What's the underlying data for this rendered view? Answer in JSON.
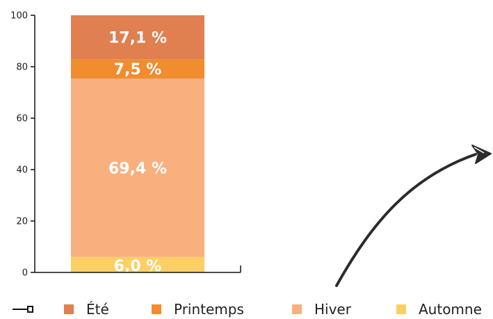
{
  "chart_data": {
    "type": "bar",
    "stacked": true,
    "ylim": [
      0,
      100
    ],
    "yticks": [
      0,
      20,
      40,
      60,
      80,
      100
    ],
    "series": [
      {
        "name": "Automne",
        "value": 6.0,
        "label": "6,0 %",
        "color": "#fccf64"
      },
      {
        "name": "Hiver",
        "value": 69.4,
        "label": "69,4 %",
        "color": "#f9b07f"
      },
      {
        "name": "Printemps",
        "value": 7.5,
        "label": "7,5 %",
        "color": "#f18c2f"
      },
      {
        "name": "Été",
        "value": 17.1,
        "label": "17,1 %",
        "color": "#e07f50"
      }
    ],
    "legend": {
      "placement": "bottom",
      "items": [
        {
          "name": "Été",
          "color": "#e07f50"
        },
        {
          "name": "Printemps",
          "color": "#f18c2f"
        },
        {
          "name": "Hiver",
          "color": "#f9b07f"
        },
        {
          "name": "Automne",
          "color": "#fccf64"
        }
      ]
    },
    "annotations": [
      {
        "type": "arrow",
        "icon": "curved-arrow-icon",
        "color": "#2b2b2b"
      }
    ]
  }
}
